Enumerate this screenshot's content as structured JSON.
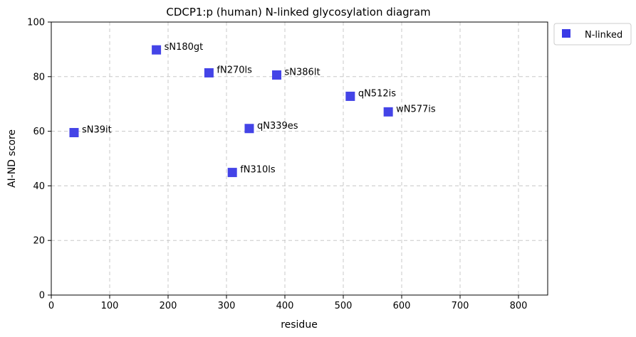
{
  "chart_data": {
    "type": "scatter",
    "title": "CDCP1:p (human) N-linked glycosylation diagram",
    "xlabel": "residue",
    "ylabel": "AI-ND score",
    "xlim": [
      0,
      850
    ],
    "ylim": [
      0,
      100
    ],
    "xticks": [
      0,
      100,
      200,
      300,
      400,
      500,
      600,
      700,
      800
    ],
    "yticks": [
      0,
      20,
      40,
      60,
      80,
      100
    ],
    "grid": true,
    "legend_position": "outside-top-right",
    "series": [
      {
        "name": "N-linked",
        "color": "#3a3ae6",
        "marker": "square",
        "points": [
          {
            "x": 39,
            "y": 59.5,
            "label": "sN39it"
          },
          {
            "x": 180,
            "y": 89.8,
            "label": "sN180gt"
          },
          {
            "x": 270,
            "y": 81.4,
            "label": "fN270ls"
          },
          {
            "x": 310,
            "y": 44.9,
            "label": "fN310ls"
          },
          {
            "x": 339,
            "y": 61.0,
            "label": "qN339es"
          },
          {
            "x": 386,
            "y": 80.6,
            "label": "sN386lt"
          },
          {
            "x": 512,
            "y": 72.8,
            "label": "qN512is"
          },
          {
            "x": 577,
            "y": 67.1,
            "label": "wN577is"
          }
        ]
      }
    ]
  }
}
